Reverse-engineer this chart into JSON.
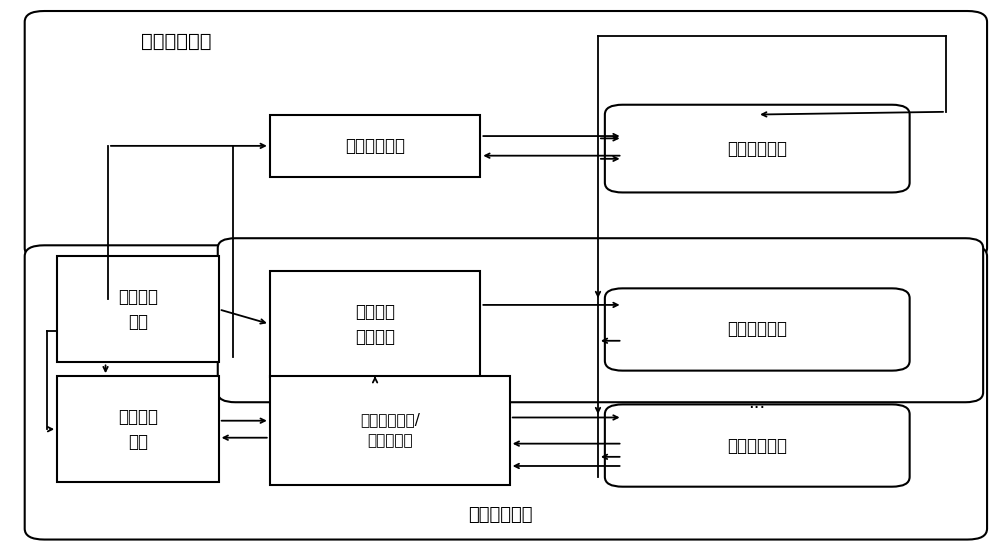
{
  "scalar_label": "标量处理部分",
  "vector_label": "矢量处理部分",
  "box_scalar_reg": "标量寄存器组",
  "box_scalar_func": "标量功能单元",
  "box_fetch_decode": "取指译码\n单元",
  "box_vec_ctrl": "矢量指令\n控制单元",
  "box_vec_func1": "矢量功能单元",
  "box_vec_func2": "矢量功能单元",
  "box_vec_mem": "矢量存取\n单元",
  "box_vec_reg": "矢量寄存器组/\n矢量缓冲器",
  "dots": "···",
  "bg": "#ffffff",
  "fg": "#000000",
  "lw": 1.5
}
